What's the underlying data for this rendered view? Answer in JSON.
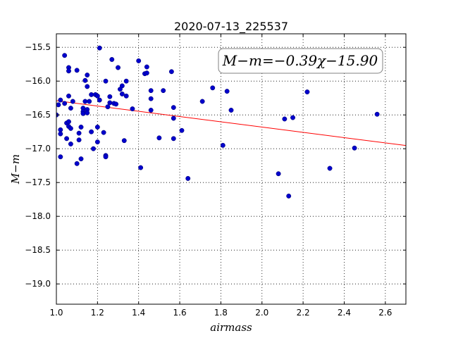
{
  "chart_data": {
    "type": "scatter",
    "title": "2020-07-13_225537",
    "xlabel": "airmass",
    "ylabel": "M−m",
    "xlim": [
      1.0,
      2.7
    ],
    "ylim": [
      -19.3,
      -15.3
    ],
    "xticks": [
      "1.0",
      "1.2",
      "1.4",
      "1.6",
      "1.8",
      "2.0",
      "2.2",
      "2.4",
      "2.6"
    ],
    "yticks": [
      "−15.5",
      "−16.0",
      "−16.5",
      "−17.0",
      "−17.5",
      "−18.0",
      "−18.5",
      "−19.0"
    ],
    "grid": true,
    "annotation": "M−m=−0.39χ−15.90",
    "fit": {
      "slope": -0.39,
      "intercept": -15.9,
      "color": "#ff0000"
    },
    "point_color": "#0000cc",
    "points": [
      [
        1.0,
        -16.5
      ],
      [
        1.01,
        -16.35
      ],
      [
        1.02,
        -16.28
      ],
      [
        1.02,
        -16.72
      ],
      [
        1.02,
        -16.78
      ],
      [
        1.02,
        -17.12
      ],
      [
        1.04,
        -15.62
      ],
      [
        1.04,
        -16.33
      ],
      [
        1.05,
        -16.62
      ],
      [
        1.05,
        -16.85
      ],
      [
        1.06,
        -15.8
      ],
      [
        1.06,
        -15.85
      ],
      [
        1.06,
        -16.22
      ],
      [
        1.06,
        -16.6
      ],
      [
        1.06,
        -16.67
      ],
      [
        1.07,
        -16.4
      ],
      [
        1.07,
        -16.7
      ],
      [
        1.07,
        -16.93
      ],
      [
        1.08,
        -16.3
      ],
      [
        1.1,
        -15.84
      ],
      [
        1.1,
        -17.22
      ],
      [
        1.11,
        -16.77
      ],
      [
        1.11,
        -16.87
      ],
      [
        1.12,
        -16.68
      ],
      [
        1.12,
        -17.15
      ],
      [
        1.13,
        -16.4
      ],
      [
        1.13,
        -16.45
      ],
      [
        1.13,
        -16.48
      ],
      [
        1.14,
        -16.3
      ],
      [
        1.14,
        -15.99
      ],
      [
        1.15,
        -16.08
      ],
      [
        1.15,
        -15.91
      ],
      [
        1.15,
        -16.42
      ],
      [
        1.15,
        -16.47
      ],
      [
        1.16,
        -16.3
      ],
      [
        1.17,
        -16.2
      ],
      [
        1.17,
        -16.75
      ],
      [
        1.18,
        -17.0
      ],
      [
        1.19,
        -16.2
      ],
      [
        1.2,
        -16.68
      ],
      [
        1.2,
        -16.22
      ],
      [
        1.2,
        -16.9
      ],
      [
        1.21,
        -15.51
      ],
      [
        1.21,
        -16.28
      ],
      [
        1.23,
        -16.76
      ],
      [
        1.24,
        -17.1
      ],
      [
        1.24,
        -17.12
      ],
      [
        1.24,
        -16.0
      ],
      [
        1.25,
        -16.38
      ],
      [
        1.26,
        -16.32
      ],
      [
        1.26,
        -16.23
      ],
      [
        1.27,
        -15.68
      ],
      [
        1.28,
        -16.33
      ],
      [
        1.29,
        -16.34
      ],
      [
        1.3,
        -15.8
      ],
      [
        1.31,
        -16.12
      ],
      [
        1.32,
        -16.19
      ],
      [
        1.32,
        -16.07
      ],
      [
        1.33,
        -16.88
      ],
      [
        1.34,
        -16.22
      ],
      [
        1.34,
        -16.0
      ],
      [
        1.37,
        -16.41
      ],
      [
        1.4,
        -15.7
      ],
      [
        1.41,
        -17.28
      ],
      [
        1.43,
        -15.89
      ],
      [
        1.44,
        -15.88
      ],
      [
        1.44,
        -15.79
      ],
      [
        1.46,
        -16.14
      ],
      [
        1.46,
        -16.26
      ],
      [
        1.46,
        -16.43
      ],
      [
        1.5,
        -16.84
      ],
      [
        1.52,
        -16.14
      ],
      [
        1.56,
        -15.86
      ],
      [
        1.57,
        -16.39
      ],
      [
        1.57,
        -16.55
      ],
      [
        1.57,
        -16.85
      ],
      [
        1.61,
        -16.73
      ],
      [
        1.64,
        -17.44
      ],
      [
        1.71,
        -16.3
      ],
      [
        1.76,
        -16.1
      ],
      [
        1.81,
        -16.95
      ],
      [
        1.83,
        -16.15
      ],
      [
        1.85,
        -16.43
      ],
      [
        2.08,
        -17.37
      ],
      [
        2.11,
        -16.56
      ],
      [
        2.13,
        -17.7
      ],
      [
        2.15,
        -16.54
      ],
      [
        2.22,
        -16.16
      ],
      [
        2.33,
        -17.29
      ],
      [
        2.45,
        -16.99
      ],
      [
        2.56,
        -16.49
      ]
    ]
  }
}
